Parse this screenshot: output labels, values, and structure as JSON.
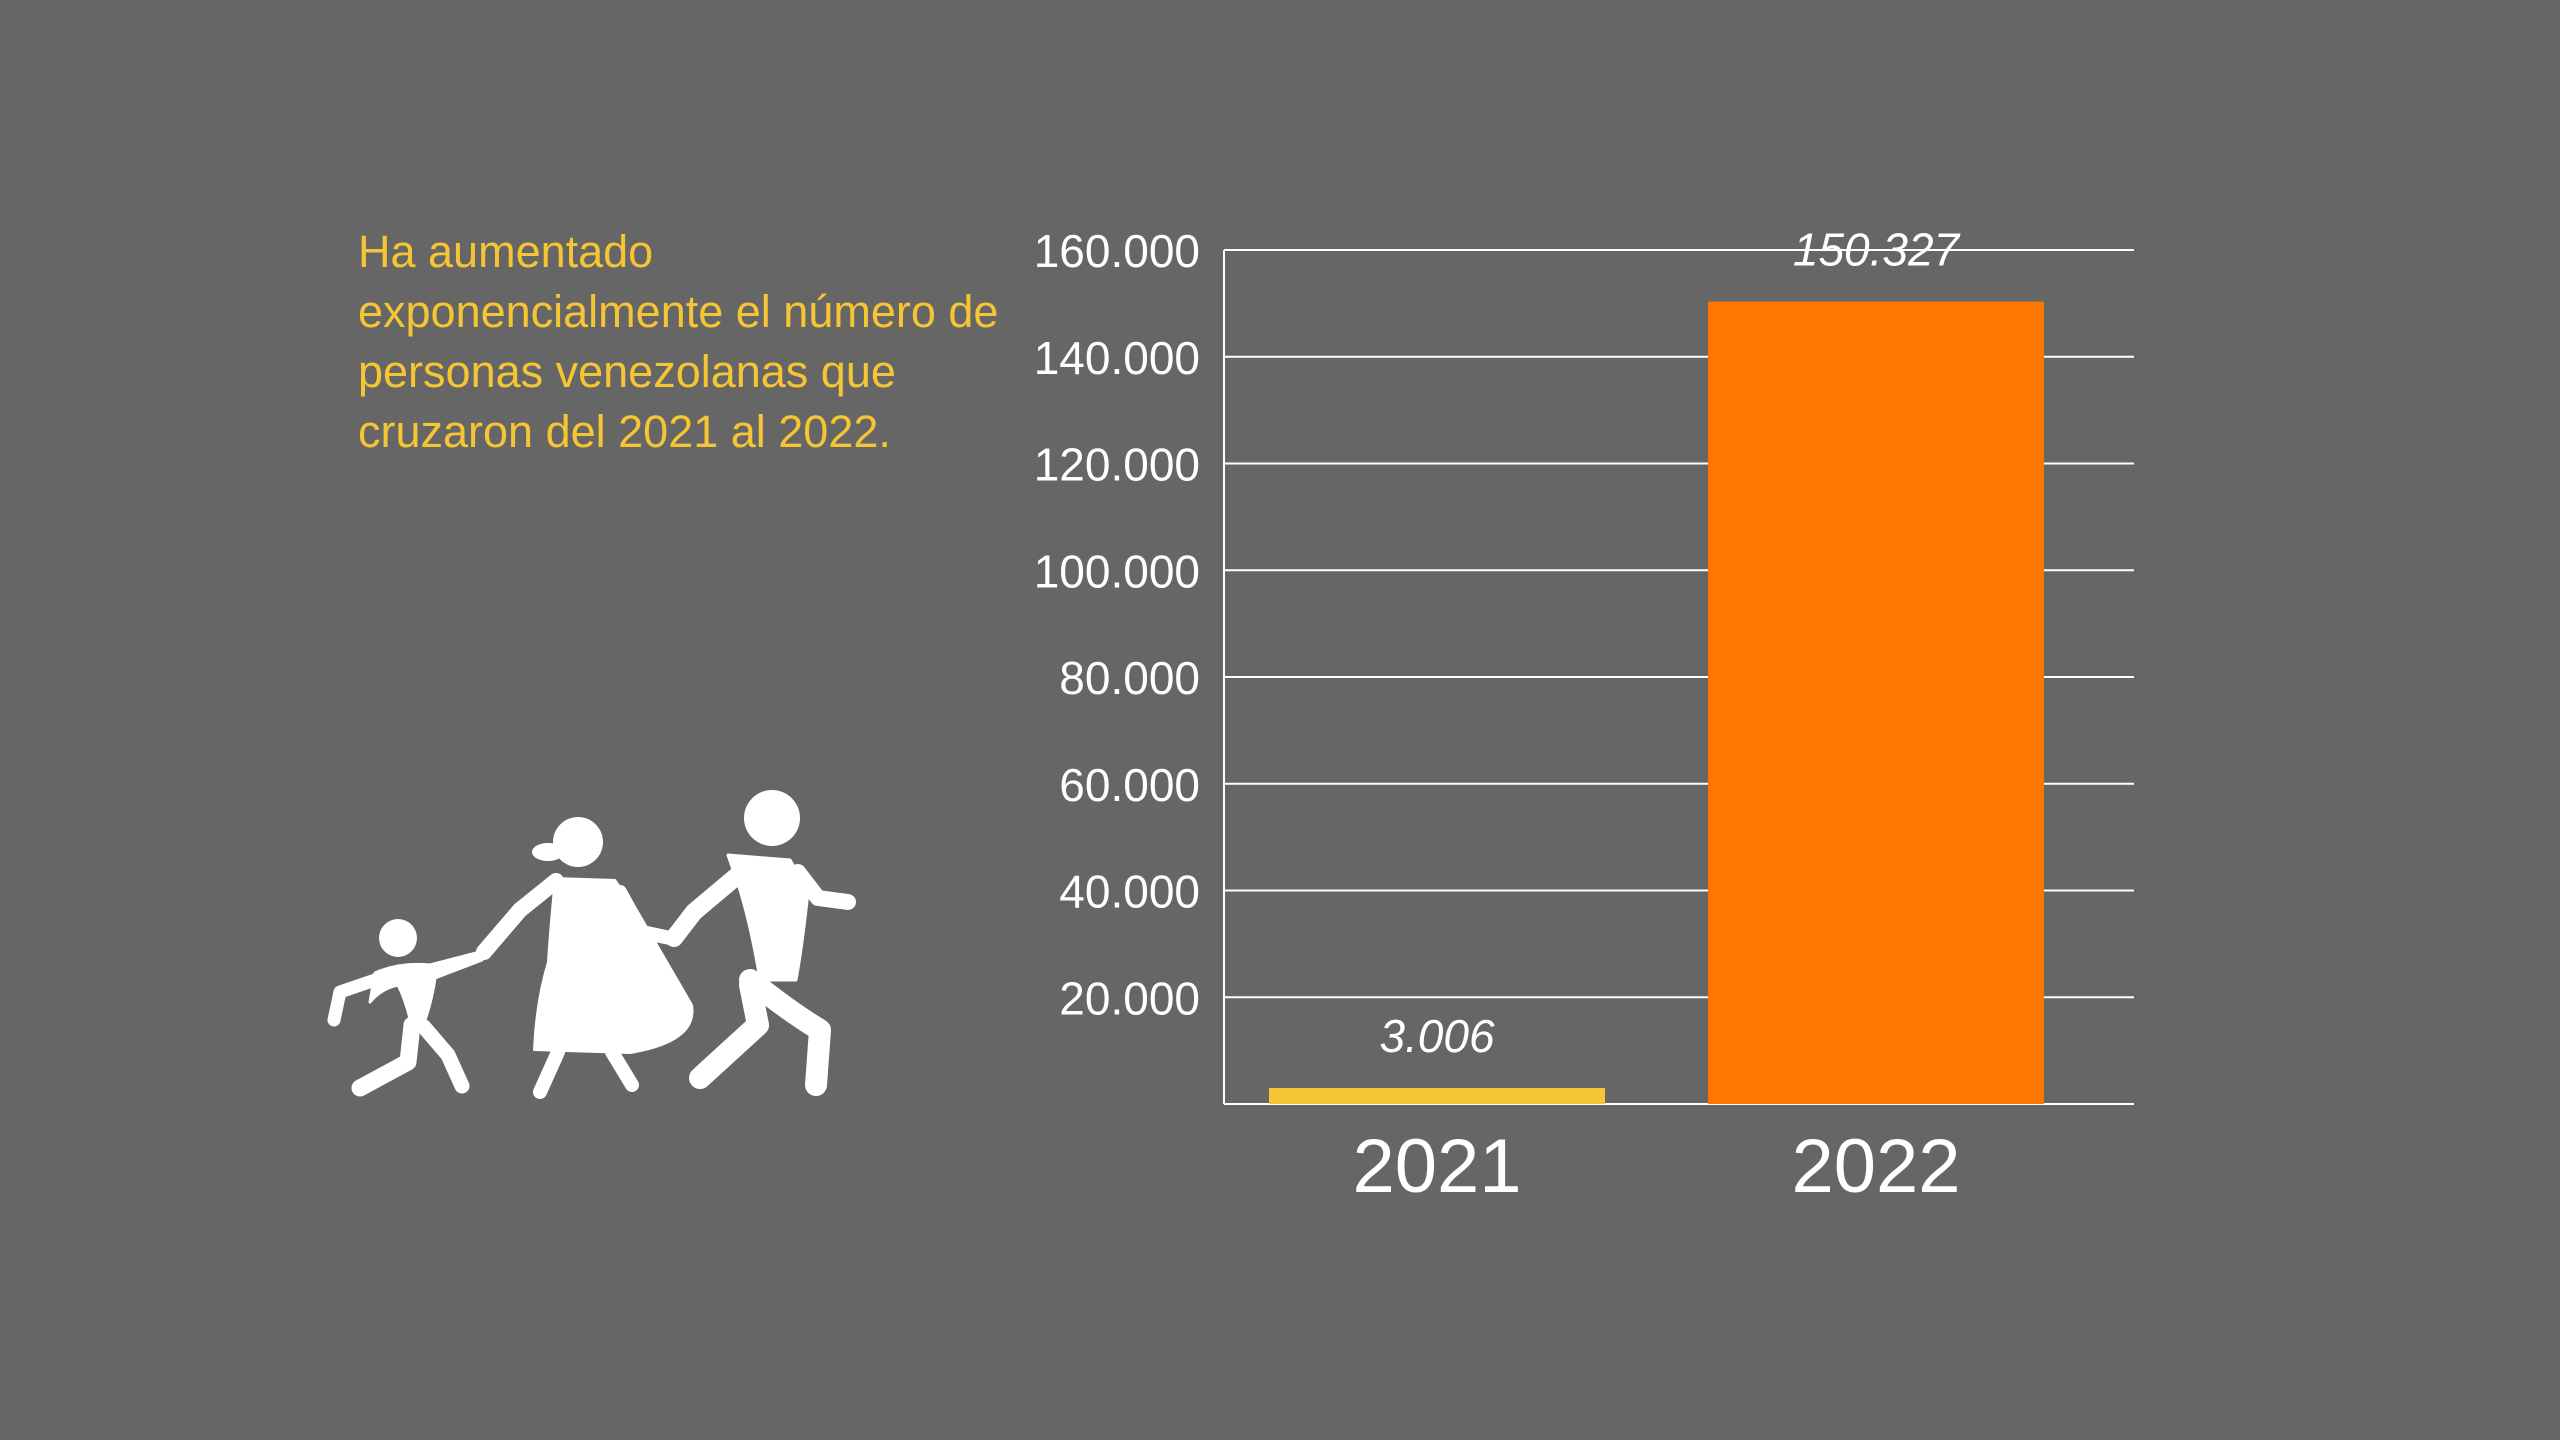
{
  "headline": "Ha aumentado exponencialmente el número de personas venezolanas que cruzaron del 2021 al 2022.",
  "icon": "family-walking-icon",
  "colors": {
    "background": "#666666",
    "headline": "#f6c533",
    "bar_2021": "#f6c533",
    "bar_2022": "#ff7700",
    "grid": "#ffffff",
    "text": "#ffffff"
  },
  "chart_data": {
    "type": "bar",
    "categories": [
      "2021",
      "2022"
    ],
    "values": [
      3006,
      150327
    ],
    "value_labels": [
      "3.006",
      "150.327"
    ],
    "ylim": [
      0,
      160000
    ],
    "yticks": [
      20000,
      40000,
      60000,
      80000,
      100000,
      120000,
      140000,
      160000
    ],
    "ytick_labels": [
      "20.000",
      "40.000",
      "60.000",
      "80.000",
      "100.000",
      "120.000",
      "140.000",
      "160.000"
    ],
    "grid": true,
    "title": "",
    "xlabel": "",
    "ylabel": ""
  }
}
